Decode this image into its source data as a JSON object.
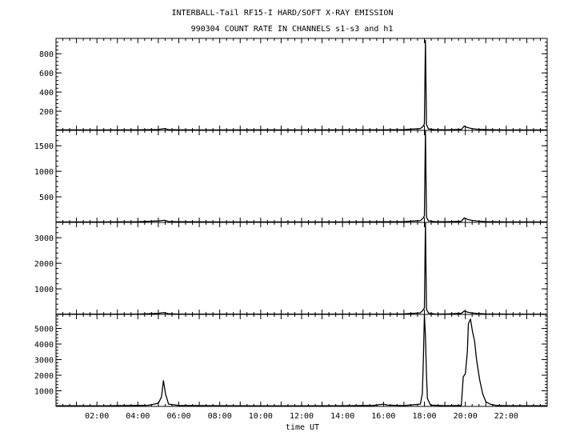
{
  "chart_data": {
    "type": "line",
    "title": "INTERBALL-Tail RF15-I HARD/SOFT X-RAY EMISSION",
    "subtitle": "990304  COUNT RATE IN CHANNELS s1-s3 and h1",
    "xlabel": "time UT",
    "x_ticks": [
      "02:00",
      "04:00",
      "06:00",
      "08:00",
      "10:00",
      "12:00",
      "14:00",
      "16:00",
      "18:00",
      "20:00",
      "22:00"
    ],
    "x_tick_hours": [
      2,
      4,
      6,
      8,
      10,
      12,
      14,
      16,
      18,
      20,
      22
    ],
    "xlim": [
      0,
      24
    ],
    "grid": false,
    "panels": [
      {
        "ylim": [
          0,
          960
        ],
        "yticks": [
          200,
          400,
          600,
          800
        ],
        "ytick_labels": [
          "200",
          "400",
          "600",
          "800"
        ],
        "points": [
          [
            0.0,
            6
          ],
          [
            2.0,
            5
          ],
          [
            4.0,
            6
          ],
          [
            5.0,
            9
          ],
          [
            5.3,
            18
          ],
          [
            5.5,
            8
          ],
          [
            6.0,
            6
          ],
          [
            8.0,
            5
          ],
          [
            10.0,
            6
          ],
          [
            12.0,
            5
          ],
          [
            14.0,
            6
          ],
          [
            16.0,
            6
          ],
          [
            17.0,
            8
          ],
          [
            17.8,
            18
          ],
          [
            17.95,
            45
          ],
          [
            18.0,
            70
          ],
          [
            18.05,
            940
          ],
          [
            18.1,
            60
          ],
          [
            18.2,
            15
          ],
          [
            18.5,
            8
          ],
          [
            19.0,
            6
          ],
          [
            19.8,
            10
          ],
          [
            19.95,
            45
          ],
          [
            20.1,
            30
          ],
          [
            20.3,
            20
          ],
          [
            20.6,
            12
          ],
          [
            21.0,
            8
          ],
          [
            21.5,
            6
          ],
          [
            22.0,
            5
          ],
          [
            24.0,
            5
          ]
        ]
      },
      {
        "ylim": [
          0,
          1800
        ],
        "yticks": [
          500,
          1000,
          1500
        ],
        "ytick_labels": [
          "500",
          "1000",
          "1500"
        ],
        "points": [
          [
            0.0,
            10
          ],
          [
            2.0,
            10
          ],
          [
            4.0,
            12
          ],
          [
            5.0,
            28
          ],
          [
            5.3,
            40
          ],
          [
            5.5,
            18
          ],
          [
            6.0,
            12
          ],
          [
            8.0,
            10
          ],
          [
            10.0,
            10
          ],
          [
            12.0,
            10
          ],
          [
            14.0,
            10
          ],
          [
            16.0,
            12
          ],
          [
            17.0,
            15
          ],
          [
            17.8,
            35
          ],
          [
            17.95,
            90
          ],
          [
            18.0,
            130
          ],
          [
            18.05,
            1800
          ],
          [
            18.1,
            100
          ],
          [
            18.2,
            30
          ],
          [
            18.5,
            15
          ],
          [
            19.0,
            12
          ],
          [
            19.8,
            20
          ],
          [
            19.95,
            90
          ],
          [
            20.1,
            60
          ],
          [
            20.3,
            40
          ],
          [
            20.6,
            25
          ],
          [
            21.0,
            15
          ],
          [
            21.5,
            12
          ],
          [
            22.0,
            10
          ],
          [
            24.0,
            10
          ]
        ]
      },
      {
        "ylim": [
          0,
          3600
        ],
        "yticks": [
          1000,
          2000,
          3000
        ],
        "ytick_labels": [
          "1000",
          "2000",
          "3000"
        ],
        "points": [
          [
            0.0,
            12
          ],
          [
            2.0,
            12
          ],
          [
            4.0,
            14
          ],
          [
            5.0,
            40
          ],
          [
            5.3,
            70
          ],
          [
            5.5,
            25
          ],
          [
            6.0,
            14
          ],
          [
            8.0,
            12
          ],
          [
            10.0,
            12
          ],
          [
            12.0,
            12
          ],
          [
            14.0,
            12
          ],
          [
            16.0,
            14
          ],
          [
            17.0,
            20
          ],
          [
            17.8,
            60
          ],
          [
            17.95,
            180
          ],
          [
            18.0,
            260
          ],
          [
            18.05,
            3600
          ],
          [
            18.1,
            200
          ],
          [
            18.2,
            50
          ],
          [
            18.5,
            20
          ],
          [
            19.0,
            15
          ],
          [
            19.8,
            40
          ],
          [
            19.95,
            130
          ],
          [
            20.1,
            90
          ],
          [
            20.3,
            60
          ],
          [
            20.6,
            35
          ],
          [
            21.0,
            20
          ],
          [
            21.5,
            15
          ],
          [
            22.0,
            12
          ],
          [
            24.0,
            12
          ]
        ]
      },
      {
        "ylim": [
          0,
          5900
        ],
        "yticks": [
          1000,
          2000,
          3000,
          4000,
          5000
        ],
        "ytick_labels": [
          "1000",
          "2000",
          "3000",
          "4000",
          "5000"
        ],
        "points": [
          [
            0.0,
            40
          ],
          [
            2.0,
            35
          ],
          [
            3.0,
            50
          ],
          [
            4.0,
            60
          ],
          [
            4.5,
            70
          ],
          [
            5.0,
            200
          ],
          [
            5.15,
            600
          ],
          [
            5.25,
            1650
          ],
          [
            5.35,
            800
          ],
          [
            5.5,
            150
          ],
          [
            6.0,
            60
          ],
          [
            8.0,
            40
          ],
          [
            10.0,
            35
          ],
          [
            12.0,
            35
          ],
          [
            14.0,
            40
          ],
          [
            15.5,
            60
          ],
          [
            16.0,
            150
          ],
          [
            16.2,
            80
          ],
          [
            17.0,
            50
          ],
          [
            17.8,
            150
          ],
          [
            17.9,
            800
          ],
          [
            17.95,
            3000
          ],
          [
            18.0,
            5900
          ],
          [
            18.05,
            4500
          ],
          [
            18.1,
            2000
          ],
          [
            18.15,
            500
          ],
          [
            18.3,
            80
          ],
          [
            19.0,
            40
          ],
          [
            19.8,
            60
          ],
          [
            19.9,
            1900
          ],
          [
            20.0,
            2100
          ],
          [
            20.1,
            3500
          ],
          [
            20.15,
            5300
          ],
          [
            20.25,
            5600
          ],
          [
            20.35,
            4800
          ],
          [
            20.45,
            4200
          ],
          [
            20.55,
            3000
          ],
          [
            20.7,
            1700
          ],
          [
            20.85,
            800
          ],
          [
            21.0,
            300
          ],
          [
            21.2,
            150
          ],
          [
            21.5,
            60
          ],
          [
            22.0,
            40
          ],
          [
            24.0,
            40
          ]
        ]
      }
    ]
  }
}
